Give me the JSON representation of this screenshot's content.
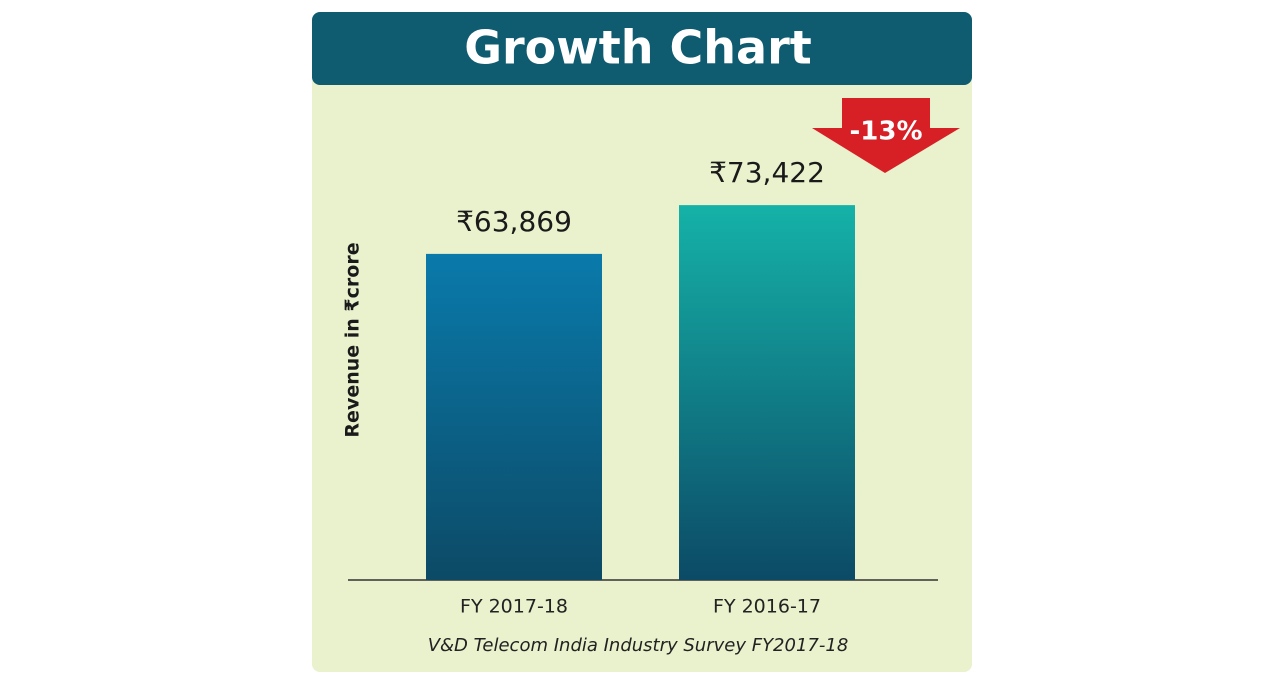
{
  "chart_data": {
    "type": "bar",
    "title": "Growth Chart",
    "y_label": "Revenue in ₹crore",
    "categories": [
      "FY 2017-18",
      "FY 2016-17"
    ],
    "values": [
      63869,
      73422
    ],
    "value_labels": [
      "₹63,869",
      "₹73,422"
    ],
    "colors": [
      "#0a7aab",
      "#15b2a8"
    ],
    "ylim": [
      0,
      85000
    ],
    "annotation": "-13%",
    "source": "V&D Telecom India Industry Survey FY2017-18"
  }
}
